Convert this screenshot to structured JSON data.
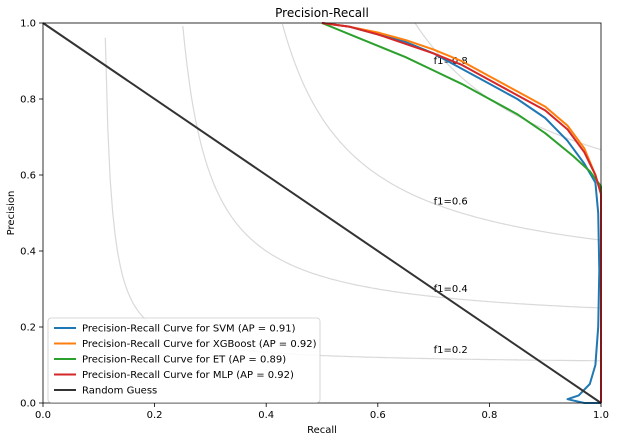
{
  "chart_data": {
    "type": "line",
    "title": "Precision-Recall",
    "xlabel": "Recall",
    "ylabel": "Precision",
    "xlim": [
      0,
      1
    ],
    "ylim": [
      0,
      1
    ],
    "xticks": [
      "0.0",
      "0.2",
      "0.4",
      "0.6",
      "0.8",
      "1.0"
    ],
    "yticks": [
      "0.0",
      "0.2",
      "0.4",
      "0.6",
      "0.8",
      "1.0"
    ],
    "grid": false,
    "legend_position": "lower-left",
    "iso_f1": [
      {
        "f1": 0.2,
        "label": "f1=0.2",
        "label_at": [
          0.7,
          0.14
        ]
      },
      {
        "f1": 0.4,
        "label": "f1=0.4",
        "label_at": [
          0.7,
          0.3
        ]
      },
      {
        "f1": 0.6,
        "label": "f1=0.6",
        "label_at": [
          0.7,
          0.53
        ]
      },
      {
        "f1": 0.8,
        "label": "f1=0.8",
        "label_at": [
          0.7,
          0.9
        ]
      }
    ],
    "series": [
      {
        "name": "Precision-Recall Curve for SVM (AP = 0.91)",
        "color": "#1f77b4",
        "points": [
          [
            0.5,
            1.0
          ],
          [
            0.55,
            0.99
          ],
          [
            0.6,
            0.97
          ],
          [
            0.65,
            0.95
          ],
          [
            0.7,
            0.92
          ],
          [
            0.75,
            0.88
          ],
          [
            0.8,
            0.84
          ],
          [
            0.85,
            0.8
          ],
          [
            0.9,
            0.75
          ],
          [
            0.94,
            0.69
          ],
          [
            0.97,
            0.63
          ],
          [
            0.99,
            0.58
          ],
          [
            0.995,
            0.5
          ],
          [
            0.997,
            0.35
          ],
          [
            0.995,
            0.2
          ],
          [
            0.99,
            0.1
          ],
          [
            0.98,
            0.05
          ],
          [
            0.96,
            0.02
          ],
          [
            0.94,
            0.01
          ],
          [
            0.97,
            0.0
          ],
          [
            1.0,
            0.0
          ]
        ]
      },
      {
        "name": "Precision-Recall Curve for XGBoost (AP = 0.92)",
        "color": "#ff7f0e",
        "points": [
          [
            0.5,
            1.0
          ],
          [
            0.55,
            0.99
          ],
          [
            0.6,
            0.975
          ],
          [
            0.65,
            0.955
          ],
          [
            0.7,
            0.93
          ],
          [
            0.75,
            0.9
          ],
          [
            0.8,
            0.86
          ],
          [
            0.85,
            0.82
          ],
          [
            0.9,
            0.78
          ],
          [
            0.94,
            0.73
          ],
          [
            0.97,
            0.67
          ],
          [
            0.99,
            0.6
          ],
          [
            1.0,
            0.55
          ],
          [
            1.0,
            0.0
          ]
        ]
      },
      {
        "name": "Precision-Recall Curve for ET (AP = 0.89)",
        "color": "#2ca02c",
        "points": [
          [
            0.5,
            1.0
          ],
          [
            0.55,
            0.97
          ],
          [
            0.6,
            0.94
          ],
          [
            0.65,
            0.91
          ],
          [
            0.7,
            0.875
          ],
          [
            0.75,
            0.84
          ],
          [
            0.8,
            0.8
          ],
          [
            0.85,
            0.76
          ],
          [
            0.9,
            0.71
          ],
          [
            0.95,
            0.65
          ],
          [
            0.98,
            0.61
          ],
          [
            1.0,
            0.57
          ],
          [
            1.0,
            0.0
          ]
        ]
      },
      {
        "name": "Precision-Recall Curve for MLP (AP = 0.92)",
        "color": "#d62728",
        "points": [
          [
            0.5,
            1.0
          ],
          [
            0.55,
            0.99
          ],
          [
            0.6,
            0.97
          ],
          [
            0.65,
            0.945
          ],
          [
            0.7,
            0.92
          ],
          [
            0.75,
            0.89
          ],
          [
            0.8,
            0.85
          ],
          [
            0.85,
            0.81
          ],
          [
            0.9,
            0.77
          ],
          [
            0.94,
            0.72
          ],
          [
            0.97,
            0.66
          ],
          [
            0.99,
            0.6
          ],
          [
            1.0,
            0.55
          ],
          [
            1.0,
            0.0
          ]
        ]
      },
      {
        "name": "Random Guess",
        "color": "#333333",
        "points": [
          [
            0,
            1
          ],
          [
            1,
            0
          ]
        ]
      }
    ]
  }
}
